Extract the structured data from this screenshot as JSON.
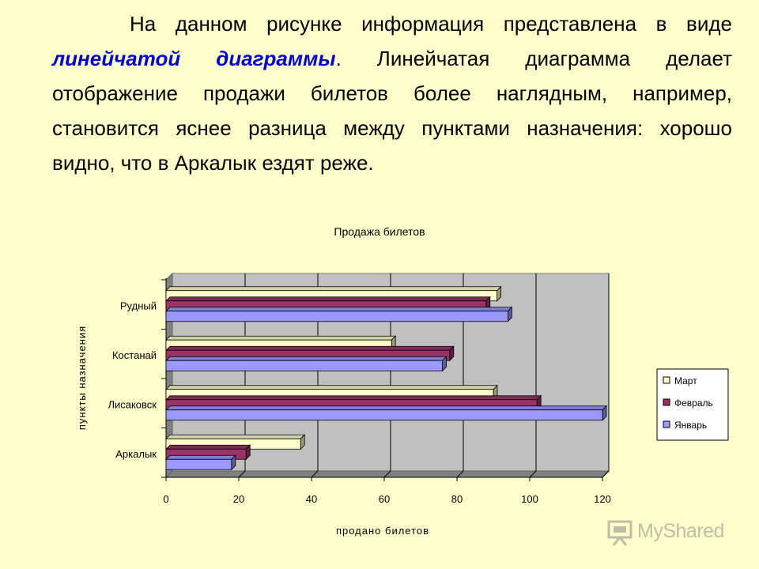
{
  "intro": {
    "part1": "На данном рисунке информация представлена в виде ",
    "emphasis": "линейчатой диаграммы",
    "part2": ". Линейчатая диаграмма делает отображение продажи билетов более наглядным, например, становится яснее разница между пунктами назначения: хорошо видно, что в Аркалык ездят реже."
  },
  "chart_data": {
    "type": "bar",
    "orientation": "horizontal",
    "title": "Продажа билетов",
    "xlabel": "продано билетов",
    "ylabel": "пункты назначения",
    "categories": [
      "Аркалык",
      "Лисаковск",
      "Костанай",
      "Рудный"
    ],
    "series": [
      {
        "name": "Март",
        "values": [
          37,
          90,
          62,
          91
        ],
        "color": "#FFFFCC"
      },
      {
        "name": "Февраль",
        "values": [
          22,
          102,
          78,
          88
        ],
        "color": "#993366"
      },
      {
        "name": "Январь",
        "values": [
          18,
          120,
          76,
          94
        ],
        "color": "#9999FF"
      }
    ],
    "xlim": [
      0,
      120
    ],
    "xticks": [
      "0",
      "20",
      "40",
      "60",
      "80",
      "100",
      "120"
    ],
    "grid": true,
    "plot_background": "#C0C0C0",
    "legend_position": "right"
  },
  "logo": {
    "text": "MyShared"
  }
}
